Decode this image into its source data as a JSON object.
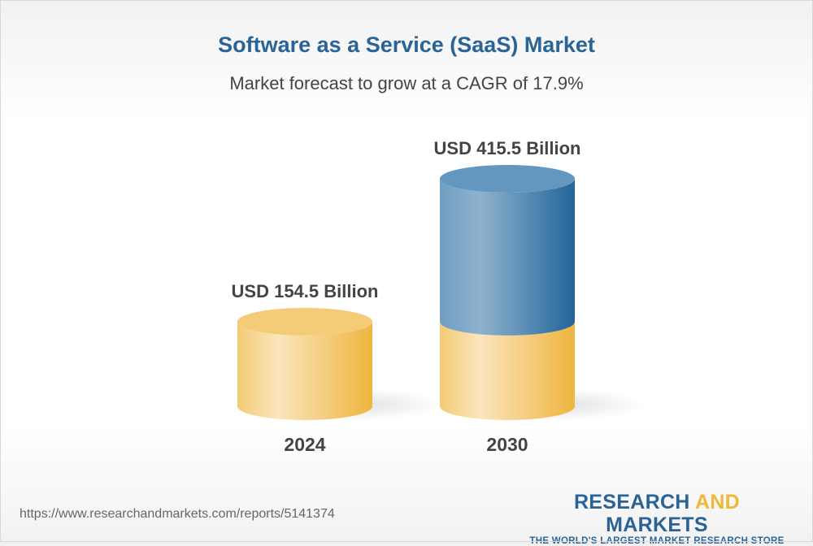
{
  "chart_data": {
    "type": "bar",
    "style": "3d-cylinder",
    "title": "Software as a Service (SaaS) Market",
    "subtitle": "Market forecast to grow at a CAGR of 17.9%",
    "categories": [
      "2024",
      "2030"
    ],
    "values": [
      154.5,
      415.5
    ],
    "data_labels": [
      "USD 154.5 Billion",
      "USD 415.5 Billion"
    ],
    "unit": "USD Billion",
    "grid": false,
    "colors": {
      "base": "#f0b838",
      "growth": "#2a6496",
      "title": "#2a6496"
    }
  },
  "footer": {
    "url": "https://www.researchandmarkets.com/reports/5141374",
    "logo_part1": "RESEARCH ",
    "logo_part2": "AND",
    "logo_part3": " MARKETS",
    "tagline": "THE WORLD'S LARGEST MARKET RESEARCH STORE"
  }
}
